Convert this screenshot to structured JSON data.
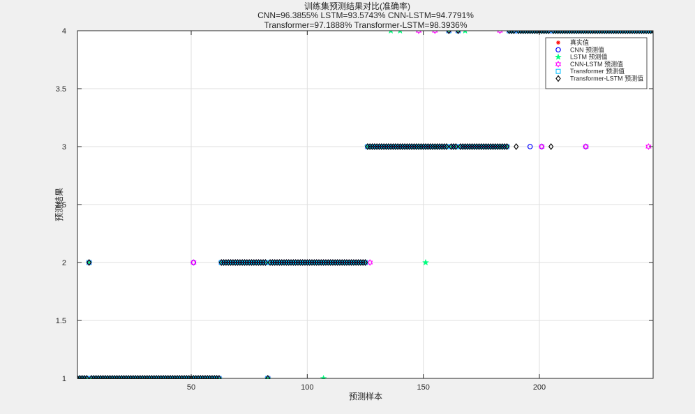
{
  "chart_data": {
    "type": "scatter",
    "title_lines": [
      "训练集预测结果对比(准确率)",
      "CNN=96.3855%  LSTM=93.5743%  CNN-LSTM=94.7791%",
      "Transformer=97.1888%  Transformer-LSTM=98.3936%"
    ],
    "xlabel": "预测样本",
    "ylabel": "预测结果",
    "xlim": [
      1,
      249
    ],
    "ylim": [
      1,
      4
    ],
    "xticks": [
      "50",
      "100",
      "150",
      "200"
    ],
    "yticks": [
      "1",
      "1.5",
      "2",
      "2.5",
      "3",
      "3.5",
      "4"
    ],
    "grid": true,
    "legend_placement": "top-right",
    "legend": [
      {
        "label": "真实值",
        "marker": "*",
        "color": "#ff0000"
      },
      {
        "label": "CNN 预测值",
        "marker": "o",
        "color": "#0000ff"
      },
      {
        "label": "LSTM 预测值",
        "marker": "pentagram",
        "color": "#00ff7f"
      },
      {
        "label": "CNN-LSTM 预测值",
        "marker": "hexagram",
        "color": "#ff00ff"
      },
      {
        "label": "Transformer 预测值",
        "marker": "s",
        "color": "#00bfff"
      },
      {
        "label": "Transformer-LSTM 预测值",
        "marker": "d",
        "color": "#000000"
      }
    ],
    "true_value_segments": [
      {
        "from": 1,
        "to": 62,
        "y": 1
      },
      {
        "from": 63,
        "to": 125,
        "y": 2
      },
      {
        "from": 126,
        "to": 186,
        "y": 3
      },
      {
        "from": 187,
        "to": 249,
        "y": 4
      }
    ],
    "true_value_outliers": [
      {
        "x": 6,
        "y": 2
      },
      {
        "x": 83,
        "y": 1
      },
      {
        "x": 161,
        "y": 4
      },
      {
        "x": 165,
        "y": 4
      }
    ],
    "deviating_predictions": {
      "CNN": [
        [
          6,
          2
        ],
        [
          51,
          2
        ],
        [
          83,
          1
        ],
        [
          165,
          4
        ],
        [
          196,
          3
        ],
        [
          201,
          3
        ],
        [
          220,
          3
        ]
      ],
      "LSTM": [
        [
          107,
          1
        ],
        [
          136,
          4
        ],
        [
          140,
          4
        ],
        [
          151,
          2
        ],
        [
          168,
          4
        ]
      ],
      "CNN-LSTM": [
        [
          51,
          2
        ],
        [
          127,
          2
        ],
        [
          148,
          4
        ],
        [
          155,
          4
        ],
        [
          183,
          4
        ],
        [
          201,
          3
        ],
        [
          220,
          3
        ],
        [
          247,
          3
        ]
      ],
      "Transformer": [
        [
          6,
          2
        ],
        [
          165,
          4
        ]
      ],
      "Transformer-LSTM": [
        [
          161,
          4
        ],
        [
          190,
          3
        ],
        [
          205,
          3
        ]
      ]
    }
  }
}
